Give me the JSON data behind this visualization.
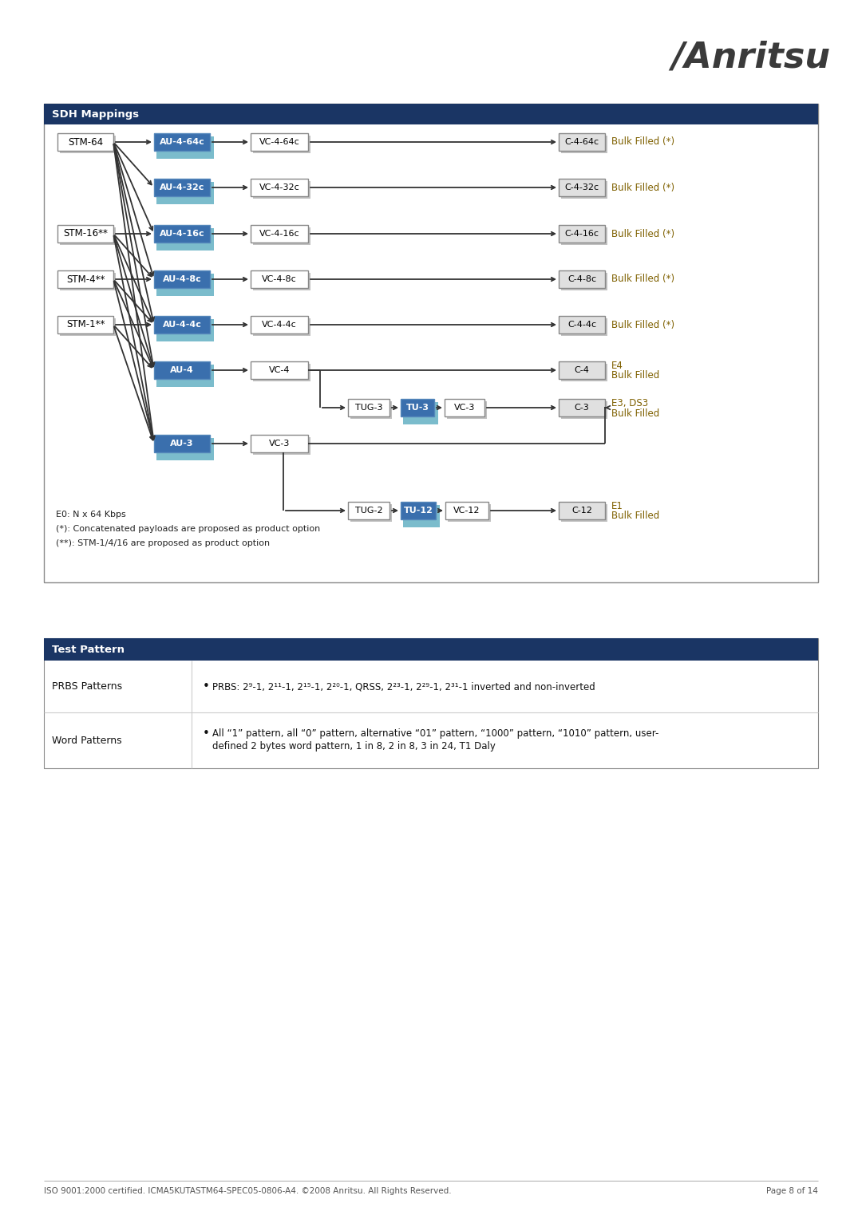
{
  "page_bg": "#ffffff",
  "header_bg": "#1a3564",
  "header_text_color": "#ffffff",
  "sdh_title": "SDH Mappings",
  "tp_title": "Test Pattern",
  "footer_text": "ISO 9001:2000 certified. ICMA5KUTASTM64-SPEC05-0806-A4. ©2008 Anritsu. All Rights Reserved.",
  "footer_right": "Page 8 of 14",
  "notes": [
    "E0: N x 64 Kbps",
    "(*): Concatenated payloads are proposed as product option",
    "(**): STM-1/4/16 are proposed as product option"
  ],
  "blue_dark": "#3a6fad",
  "blue_light": "#7bbccc",
  "gray_shadow": "#c0c0c0",
  "box_edge": "#888888",
  "white_box": "#ffffff",
  "gray_box": "#e0e0e0",
  "label_color": "#7f6000",
  "line_color": "#333333",
  "prbs_text": "PRBS: 2⁹-1, 2¹¹-1, 2¹⁵-1, 2²⁰-1, QRSS, 2²³-1, 2²⁹-1, 2³¹-1 inverted and non-inverted",
  "word_text": "All “1” pattern, all “0” pattern, alternative “01” pattern, “1000” pattern, “1010” pattern, user-\ndefined 2 bytes word pattern, 1 in 8, 2 in 8, 3 in 24, T1 Daly"
}
